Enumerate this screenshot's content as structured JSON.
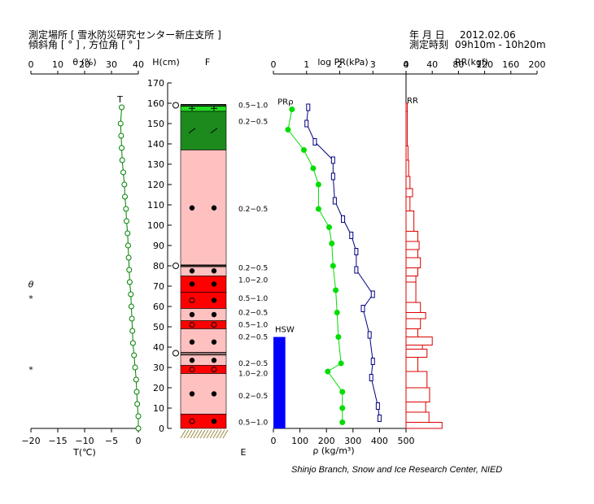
{
  "header": {
    "site_label": "測定場所 [ 雪氷防災研究センター新庄支所 ]",
    "angle_label": "傾斜角 [ ° ] , 方位角 [ ° ]",
    "date_label": "年 月 日",
    "date_value": "2012.02.06",
    "time_label": "測定時刻",
    "time_value": "09h10m - 10h20m"
  },
  "credit": "Shinjo Branch, Snow and Ice Research Center, NIED",
  "colors": {
    "water": "#008000",
    "temp": "#008000",
    "density": "#00dd00",
    "pr": "#000080",
    "rr": "#dd0000",
    "hsw": "#0000ff",
    "layer_green": "#1d8a1d",
    "layer_bright_green": "#22dd22",
    "layer_pink": "#ffc0c0",
    "layer_red": "#ff0000"
  },
  "chart_data": [
    {
      "type": "line",
      "name": "theta-temperature",
      "top_axis": {
        "label": "θ (%)",
        "range": [
          0,
          40
        ],
        "ticks": [
          "0",
          "10",
          "20",
          "30",
          "40"
        ]
      },
      "bottom_axis": {
        "label": "T(℃)",
        "range": [
          -20,
          0
        ],
        "ticks": [
          "−20",
          "−15",
          "−10",
          "−5",
          "0"
        ]
      },
      "side_marks": [
        {
          "text": "θ",
          "y": 71
        },
        {
          "text": "*",
          "y": 64
        },
        {
          "text": "*",
          "y": 29
        }
      ],
      "series": [
        {
          "name": "T",
          "x": [
            -3.1,
            -3.3,
            -3.2,
            -3.1,
            -3.0,
            -2.8,
            -2.6,
            -2.5,
            -2.3,
            -2.2,
            -2.0,
            -1.9,
            -1.8,
            -1.7,
            -1.6,
            -1.4,
            -1.3,
            -1.2,
            -1.1,
            -1.0,
            -0.8,
            -0.6,
            -0.4,
            -0.3,
            -0.2,
            0.0,
            0.0
          ],
          "y": [
            158,
            150,
            144,
            138,
            132,
            126,
            120,
            114,
            108,
            102,
            96,
            90,
            84,
            78,
            72,
            66,
            60,
            54,
            48,
            42,
            36,
            30,
            24,
            18,
            12,
            6,
            0
          ]
        }
      ]
    },
    {
      "type": "table",
      "name": "snow-layers",
      "height_axis": {
        "label": "H(cm)",
        "range": [
          0,
          170
        ],
        "ticks": [
          "0",
          "10",
          "20",
          "30",
          "40",
          "50",
          "60",
          "70",
          "80",
          "90",
          "100",
          "110",
          "120",
          "130",
          "140",
          "150",
          "160",
          "170"
        ]
      },
      "column_header": "F",
      "bottom_label": "E",
      "layers": [
        {
          "bottom": 156,
          "top": 159,
          "color": "bright_green",
          "grain": "rounded-plus",
          "size": "0.5−1.0"
        },
        {
          "bottom": 137,
          "top": 156,
          "color": "green",
          "grain": "slash",
          "size": "0.2−0.5"
        },
        {
          "bottom": 80,
          "top": 137,
          "color": "pink",
          "grain": "dot",
          "size": "0.2−0.5"
        },
        {
          "bottom": 75,
          "top": 80,
          "color": "pink",
          "grain": "dot",
          "size": "0.2−0.5"
        },
        {
          "bottom": 67,
          "top": 75,
          "color": "red",
          "grain": "dot",
          "size": "1.0−2.0"
        },
        {
          "bottom": 59,
          "top": 67,
          "color": "red",
          "grain": "circle-dot",
          "size": "0.5−1.0"
        },
        {
          "bottom": 53,
          "top": 59,
          "color": "pink",
          "grain": "dot",
          "size": "0.2−0.5"
        },
        {
          "bottom": 49,
          "top": 53,
          "color": "red",
          "grain": "circle",
          "size": "0.5−1.0"
        },
        {
          "bottom": 36,
          "top": 49,
          "color": "pink",
          "grain": "dot",
          "size": "0.2−0.5"
        },
        {
          "bottom": 31,
          "top": 36,
          "color": "pink",
          "grain": "dot",
          "size": "0.2−0.5"
        },
        {
          "bottom": 27,
          "top": 31,
          "color": "red",
          "grain": "circle",
          "size": "1.0−2.0"
        },
        {
          "bottom": 7,
          "top": 27,
          "color": "pink",
          "grain": "dot",
          "size": "0.2−0.5"
        },
        {
          "bottom": 0,
          "top": 7,
          "color": "red",
          "grain": "circle-dot",
          "size": "0.5−1.0"
        }
      ],
      "ice_crusts": [
        159,
        80,
        37
      ],
      "size_label_heights": [
        159,
        151,
        108,
        79,
        73,
        64,
        57,
        51,
        45,
        32,
        27,
        16,
        3
      ]
    },
    {
      "type": "line",
      "name": "density-pr",
      "top_axis": {
        "label": "log PR(kPa)",
        "range": [
          0,
          4
        ],
        "ticks": [
          "0",
          "1",
          "2",
          "3",
          "4"
        ]
      },
      "bottom_axis": {
        "label": "ρ (kg/m³)",
        "range": [
          0,
          500
        ],
        "ticks": [
          "0",
          "100",
          "200",
          "300",
          "400",
          "500"
        ]
      },
      "series": [
        {
          "name": "PRρ",
          "x": [
            70,
            55,
            115,
            150,
            170,
            170,
            210,
            220,
            225,
            235,
            240,
            245,
            255,
            205,
            260,
            260,
            260
          ],
          "y": [
            157,
            147,
            137,
            128,
            120,
            108,
            99,
            91,
            80,
            68,
            57,
            45,
            32,
            28,
            18,
            10,
            3
          ]
        },
        {
          "name": "PR",
          "x": [
            1.05,
            1.0,
            1.25,
            1.8,
            1.8,
            1.85,
            2.1,
            2.35,
            2.5,
            2.5,
            3.0,
            2.7,
            2.9,
            3.0,
            2.95,
            3.15,
            3.2
          ],
          "y": [
            158,
            150,
            141,
            132,
            124,
            112,
            103,
            95,
            87,
            78,
            66,
            59,
            46,
            33,
            25,
            11,
            5
          ]
        }
      ],
      "bars": [
        {
          "name": "HSW",
          "x_range": [
            0,
            45
          ],
          "y_range": [
            0,
            45
          ]
        }
      ]
    },
    {
      "type": "bar",
      "name": "ram-resistance",
      "top_axis": {
        "label": "RR(kgf)",
        "range": [
          0,
          200
        ],
        "ticks": [
          "0",
          "40",
          "80",
          "120",
          "160",
          "200"
        ]
      },
      "series": [
        {
          "name": "RR",
          "layers": [
            {
              "from": 156,
              "to": 160,
              "v": 2
            },
            {
              "from": 139,
              "to": 156,
              "v": 2
            },
            {
              "from": 132,
              "to": 139,
              "v": 3
            },
            {
              "from": 124,
              "to": 132,
              "v": 4
            },
            {
              "from": 118,
              "to": 124,
              "v": 6
            },
            {
              "from": 114,
              "to": 118,
              "v": 10
            },
            {
              "from": 107,
              "to": 114,
              "v": 6
            },
            {
              "from": 97,
              "to": 107,
              "v": 12
            },
            {
              "from": 92,
              "to": 97,
              "v": 18
            },
            {
              "from": 88,
              "to": 92,
              "v": 20
            },
            {
              "from": 84,
              "to": 88,
              "v": 18
            },
            {
              "from": 79,
              "to": 84,
              "v": 22
            },
            {
              "from": 75,
              "to": 79,
              "v": 18
            },
            {
              "from": 72,
              "to": 75,
              "v": 15
            },
            {
              "from": 62,
              "to": 72,
              "v": 15
            },
            {
              "from": 57,
              "to": 62,
              "v": 22
            },
            {
              "from": 54,
              "to": 57,
              "v": 30
            },
            {
              "from": 49,
              "to": 54,
              "v": 22
            },
            {
              "from": 45,
              "to": 49,
              "v": 18
            },
            {
              "from": 41,
              "to": 45,
              "v": 40
            },
            {
              "from": 39,
              "to": 41,
              "v": 25
            },
            {
              "from": 35,
              "to": 39,
              "v": 32
            },
            {
              "from": 28,
              "to": 35,
              "v": 18
            },
            {
              "from": 20,
              "to": 28,
              "v": 32
            },
            {
              "from": 13,
              "to": 20,
              "v": 36
            },
            {
              "from": 8,
              "to": 13,
              "v": 30
            },
            {
              "from": 3,
              "to": 8,
              "v": 35
            },
            {
              "from": 0,
              "to": 3,
              "v": 55
            }
          ]
        }
      ]
    }
  ]
}
